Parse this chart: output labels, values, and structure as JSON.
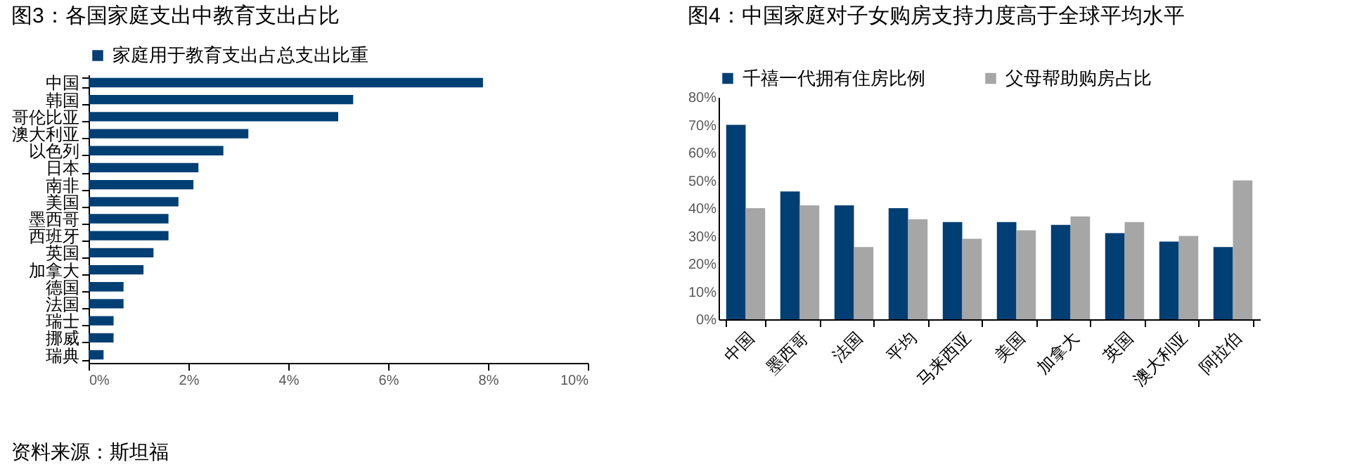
{
  "chart_data": [
    {
      "type": "bar",
      "title": "图3：各国家庭支出中教育支出占比",
      "orientation": "horizontal",
      "legend": "top",
      "grid": false,
      "categories": [
        "中国",
        "韩国",
        "哥伦比亚",
        "澳大利亚",
        "以色列",
        "日本",
        "南非",
        "美国",
        "墨西哥",
        "西班牙",
        "英国",
        "加拿大",
        "德国",
        "法国",
        "瑞士",
        "挪威",
        "瑞典"
      ],
      "series": [
        {
          "name": "家庭用于教育支出占总支出比重",
          "color": "#003f73",
          "values": [
            7.9,
            5.3,
            5.0,
            3.2,
            2.7,
            2.2,
            2.1,
            1.8,
            1.6,
            1.6,
            1.3,
            1.1,
            0.7,
            0.7,
            0.5,
            0.5,
            0.3
          ]
        }
      ],
      "xlim": [
        0,
        10
      ],
      "xticks": [
        {
          "value": 0,
          "label": "0%"
        },
        {
          "value": 2,
          "label": "2%"
        },
        {
          "value": 4,
          "label": "4%"
        },
        {
          "value": 6,
          "label": "6%"
        },
        {
          "value": 8,
          "label": "8%"
        },
        {
          "value": 10,
          "label": "10%"
        }
      ],
      "annotations": [
        "资料来源：斯坦福"
      ]
    },
    {
      "type": "bar",
      "title": "图4：中国家庭对子女购房支持力度高于全球平均水平",
      "legend": "top",
      "grid": false,
      "categories": [
        "中国",
        "墨西哥",
        "法国",
        "平均",
        "马来西亚",
        "美国",
        "加拿大",
        "英国",
        "澳大利亚",
        "阿拉伯"
      ],
      "series": [
        {
          "name": "千禧一代拥有住房比例",
          "color": "#003f73",
          "values": [
            70,
            46,
            41,
            40,
            35,
            35,
            34,
            31,
            28,
            26
          ]
        },
        {
          "name": "父母帮助购房占比",
          "color": "#a6a6a6",
          "values": [
            40,
            41,
            26,
            36,
            29,
            32,
            37,
            35,
            30,
            50
          ]
        }
      ],
      "ylim": [
        0,
        80
      ],
      "yticks": [
        {
          "value": 0,
          "label": "0%"
        },
        {
          "value": 10,
          "label": "10%"
        },
        {
          "value": 20,
          "label": "20%"
        },
        {
          "value": 30,
          "label": "30%"
        },
        {
          "value": 40,
          "label": "40%"
        },
        {
          "value": 50,
          "label": "50%"
        },
        {
          "value": 60,
          "label": "60%"
        },
        {
          "value": 70,
          "label": "70%"
        },
        {
          "value": 80,
          "label": "80%"
        }
      ]
    }
  ]
}
